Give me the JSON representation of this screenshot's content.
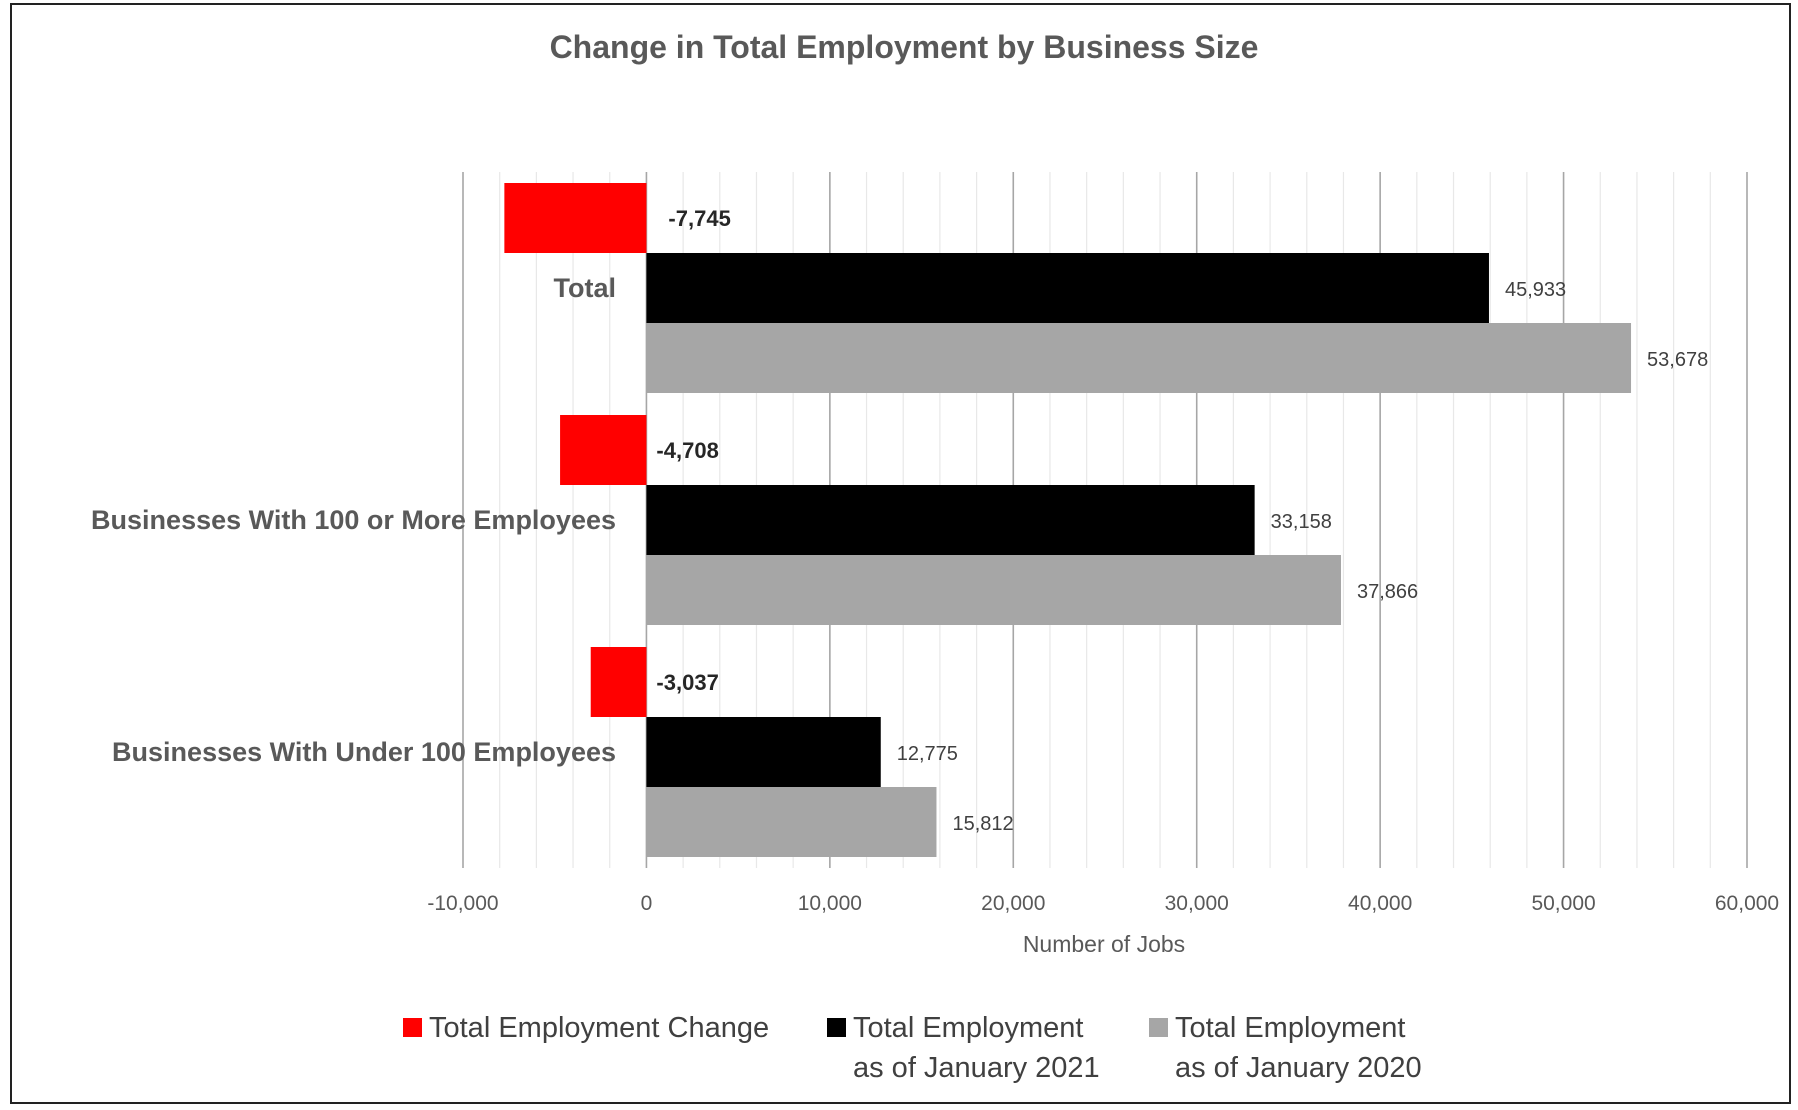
{
  "chart_data": {
    "type": "bar",
    "orientation": "horizontal",
    "title": "Change in Total Employment by Business Size",
    "xlabel": "Number of Jobs",
    "ylabel": "",
    "xlim": [
      -10000,
      60000
    ],
    "x_ticks": [
      -10000,
      0,
      10000,
      20000,
      30000,
      40000,
      50000,
      60000
    ],
    "x_tick_labels": [
      "-10,000",
      "0",
      "10,000",
      "20,000",
      "30,000",
      "40,000",
      "50,000",
      "60,000"
    ],
    "grid": true,
    "legend_position": "bottom",
    "categories": [
      "Total",
      "Businesses With 100 or More Employees",
      "Businesses With Under 100 Employees"
    ],
    "series": [
      {
        "name": "Total Employment Change",
        "legend_lines": [
          "Total Employment Change"
        ],
        "color": "#ff0000",
        "values": [
          -7745,
          -4708,
          -3037
        ],
        "labels": [
          "-7,745",
          "-4,708",
          "-3,037"
        ]
      },
      {
        "name": "Total Employment as of January 2021",
        "legend_lines": [
          "Total Employment",
          "as of January 2021"
        ],
        "color": "#000000",
        "values": [
          45933,
          33158,
          12775
        ],
        "labels": [
          "45,933",
          "33,158",
          "12,775"
        ]
      },
      {
        "name": "Total Employment as of January 2020",
        "legend_lines": [
          "Total Employment",
          "as of January 2020"
        ],
        "color": "#a6a6a6",
        "values": [
          53678,
          37866,
          15812
        ],
        "labels": [
          "53,678",
          "37,866",
          "15,812"
        ]
      }
    ]
  }
}
